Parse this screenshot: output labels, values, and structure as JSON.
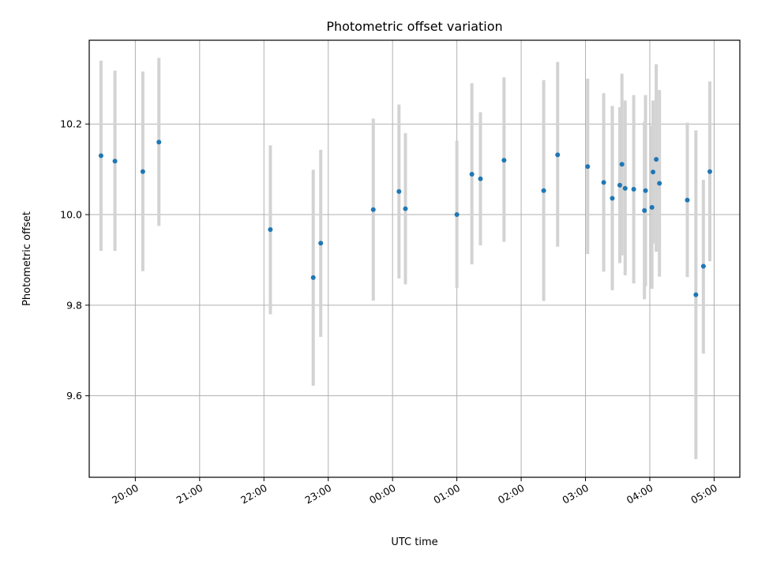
{
  "chart_data": {
    "type": "scatter",
    "title": "Photometric offset variation",
    "xlabel": "UTC time",
    "ylabel": "Photometric offset",
    "x_ticks": [
      "20:00",
      "21:00",
      "22:00",
      "23:00",
      "00:00",
      "01:00",
      "02:00",
      "03:00",
      "04:00",
      "05:00"
    ],
    "y_ticks": [
      "9.6",
      "9.8",
      "10.0",
      "10.2"
    ],
    "xlim": [
      "19:17",
      "05:24"
    ],
    "ylim": [
      9.42,
      10.385
    ],
    "grid": true,
    "marker_color": "#1f77b4",
    "errorbar_color": "#d3d3d3",
    "series": [
      {
        "points": [
          {
            "x": "19:28",
            "y": 10.13,
            "err_low": 9.92,
            "err_high": 10.34
          },
          {
            "x": "19:41",
            "y": 10.118,
            "err_low": 9.92,
            "err_high": 10.318
          },
          {
            "x": "20:07",
            "y": 10.095,
            "err_low": 9.875,
            "err_high": 10.316
          },
          {
            "x": "20:22",
            "y": 10.16,
            "err_low": 9.975,
            "err_high": 10.346
          },
          {
            "x": "22:06",
            "y": 9.967,
            "err_low": 9.78,
            "err_high": 10.153
          },
          {
            "x": "22:46",
            "y": 9.861,
            "err_low": 9.622,
            "err_high": 10.099
          },
          {
            "x": "22:53",
            "y": 9.937,
            "err_low": 9.73,
            "err_high": 10.143
          },
          {
            "x": "23:42",
            "y": 10.011,
            "err_low": 9.81,
            "err_high": 10.212
          },
          {
            "x": "00:06",
            "y": 10.051,
            "err_low": 9.859,
            "err_high": 10.243
          },
          {
            "x": "00:12",
            "y": 10.013,
            "err_low": 9.846,
            "err_high": 10.18
          },
          {
            "x": "01:00",
            "y": 10.0,
            "err_low": 9.838,
            "err_high": 10.163
          },
          {
            "x": "01:14",
            "y": 10.089,
            "err_low": 9.89,
            "err_high": 10.29
          },
          {
            "x": "01:22",
            "y": 10.079,
            "err_low": 9.932,
            "err_high": 10.226
          },
          {
            "x": "01:44",
            "y": 10.12,
            "err_low": 9.94,
            "err_high": 10.303
          },
          {
            "x": "02:21",
            "y": 10.053,
            "err_low": 9.809,
            "err_high": 10.297
          },
          {
            "x": "02:34",
            "y": 10.132,
            "err_low": 9.929,
            "err_high": 10.337
          },
          {
            "x": "03:02",
            "y": 10.106,
            "err_low": 9.913,
            "err_high": 10.3
          },
          {
            "x": "03:17",
            "y": 10.071,
            "err_low": 9.874,
            "err_high": 10.268
          },
          {
            "x": "03:25",
            "y": 10.036,
            "err_low": 9.833,
            "err_high": 10.24
          },
          {
            "x": "03:32",
            "y": 10.065,
            "err_low": 9.893,
            "err_high": 10.237
          },
          {
            "x": "03:34",
            "y": 10.111,
            "err_low": 9.91,
            "err_high": 10.311
          },
          {
            "x": "03:37",
            "y": 10.058,
            "err_low": 9.866,
            "err_high": 10.252
          },
          {
            "x": "03:45",
            "y": 10.056,
            "err_low": 9.848,
            "err_high": 10.264
          },
          {
            "x": "03:55",
            "y": 10.009,
            "err_low": 9.813,
            "err_high": 10.205
          },
          {
            "x": "03:56",
            "y": 10.053,
            "err_low": 9.842,
            "err_high": 10.264
          },
          {
            "x": "04:02",
            "y": 10.016,
            "err_low": 9.836,
            "err_high": 10.196
          },
          {
            "x": "04:03",
            "y": 10.094,
            "err_low": 9.936,
            "err_high": 10.252
          },
          {
            "x": "04:06",
            "y": 10.122,
            "err_low": 9.918,
            "err_high": 10.332
          },
          {
            "x": "04:09",
            "y": 10.069,
            "err_low": 9.863,
            "err_high": 10.275
          },
          {
            "x": "04:35",
            "y": 10.032,
            "err_low": 9.862,
            "err_high": 10.203
          },
          {
            "x": "04:43",
            "y": 9.823,
            "err_low": 9.46,
            "err_high": 10.186
          },
          {
            "x": "04:50",
            "y": 9.886,
            "err_low": 9.693,
            "err_high": 10.077
          },
          {
            "x": "04:56",
            "y": 10.095,
            "err_low": 9.897,
            "err_high": 10.294
          }
        ]
      }
    ]
  }
}
